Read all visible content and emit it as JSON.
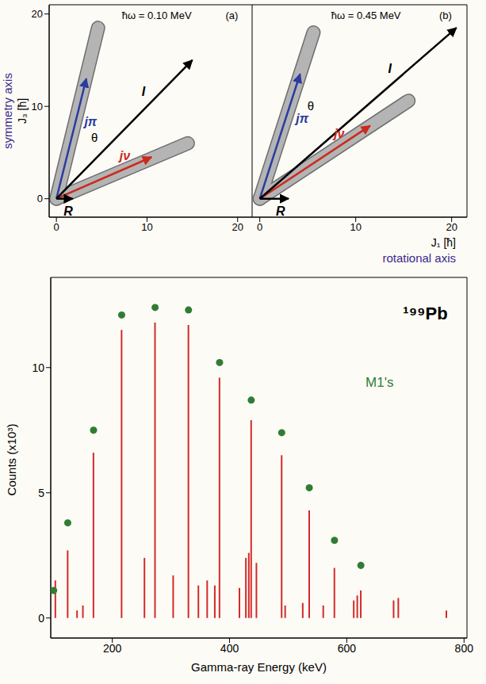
{
  "chart_data": [
    {
      "type": "vector",
      "title": "ħω = 0.10 MeV",
      "panel_label": "(a)",
      "y_label": "J₃ [ħ]",
      "y_axis_name": "symmetry axis",
      "angle_label": "θ",
      "xlim": [
        -0.8,
        21.6
      ],
      "ylim": [
        -2,
        21
      ],
      "xticks": [
        0,
        10,
        20
      ],
      "yticks": [
        0,
        10,
        20
      ],
      "vectors": [
        {
          "name": "jπ",
          "color": "#2b3b9e",
          "x": [
            0,
            3.3
          ],
          "y": [
            0,
            13
          ],
          "spread": {
            "x": [
              0,
              4.6
            ],
            "y": [
              0,
              18.5
            ]
          }
        },
        {
          "name": "jν",
          "color": "#cc2a1e",
          "x": [
            0,
            10.5
          ],
          "y": [
            0,
            4.5
          ],
          "spread": {
            "x": [
              0,
              14.5
            ],
            "y": [
              0,
              6
            ]
          }
        },
        {
          "name": "I",
          "color": "#000000",
          "x": [
            0,
            15
          ],
          "y": [
            0,
            15
          ]
        },
        {
          "name": "R",
          "color": "#000000",
          "x": [
            0,
            1.8
          ],
          "y": [
            0,
            0
          ]
        }
      ]
    },
    {
      "type": "vector",
      "title": "ħω = 0.45 MeV",
      "panel_label": "(b)",
      "x_label": "J₁ [ħ]",
      "x_axis_name": "rotational axis",
      "angle_label": "θ",
      "xlim": [
        -0.8,
        21.6
      ],
      "ylim": [
        -2,
        21
      ],
      "xticks": [
        0,
        10,
        20
      ],
      "yticks": [
        0,
        10,
        20
      ],
      "tick_labels": "x",
      "vectors": [
        {
          "name": "jπ",
          "color": "#2b3b9e",
          "x": [
            0,
            4.2
          ],
          "y": [
            0,
            13.5
          ],
          "spread": {
            "x": [
              0,
              5.6
            ],
            "y": [
              0,
              18
            ]
          }
        },
        {
          "name": "jν",
          "color": "#cc2a1e",
          "x": [
            0,
            11.5
          ],
          "y": [
            0,
            7.9
          ],
          "spread": {
            "x": [
              0,
              15.5
            ],
            "y": [
              0,
              10.6
            ]
          }
        },
        {
          "name": "I",
          "color": "#000000",
          "x": [
            0,
            20.5
          ],
          "y": [
            0,
            18.5
          ]
        },
        {
          "name": "R",
          "color": "#000000",
          "x": [
            0,
            3
          ],
          "y": [
            0,
            0
          ]
        }
      ]
    },
    {
      "type": "bar",
      "title": "¹⁹⁹Pb",
      "x_label": "Gamma-ray Energy (keV)",
      "y_label": "Counts (x10³)",
      "color": "#d42a2a",
      "x": [
        103,
        124,
        140,
        150,
        168,
        216,
        255,
        273,
        304,
        330,
        347,
        362,
        375,
        383,
        417,
        428,
        433,
        437,
        446,
        489,
        495,
        525,
        536,
        560,
        579,
        612,
        618,
        624,
        680,
        688,
        770
      ],
      "values": [
        1.5,
        2.7,
        0.3,
        0.5,
        6.6,
        11.5,
        2.4,
        11.8,
        1.7,
        11.7,
        1.3,
        1.5,
        1.3,
        9.6,
        1.2,
        2.4,
        2.6,
        7.9,
        2.2,
        6.5,
        0.5,
        0.6,
        4.3,
        0.5,
        2.0,
        0.7,
        0.9,
        1.1,
        0.7,
        0.8,
        0.3
      ],
      "xlim": [
        95,
        805
      ],
      "ylim": [
        -0.8,
        13.6
      ],
      "xticks": [
        200,
        400,
        600,
        800
      ],
      "yticks": [
        0,
        5,
        10
      ],
      "annotations": [
        {
          "text": "M1's",
          "color": "#2f7d32",
          "marker": "circle",
          "x": [
            100,
            124,
            168,
            216,
            273,
            330,
            383,
            437,
            489,
            536,
            579,
            624
          ],
          "y": [
            1.1,
            3.8,
            7.5,
            12.1,
            12.4,
            12.3,
            10.2,
            8.7,
            7.4,
            5.2,
            3.1,
            2.1
          ]
        }
      ]
    }
  ]
}
